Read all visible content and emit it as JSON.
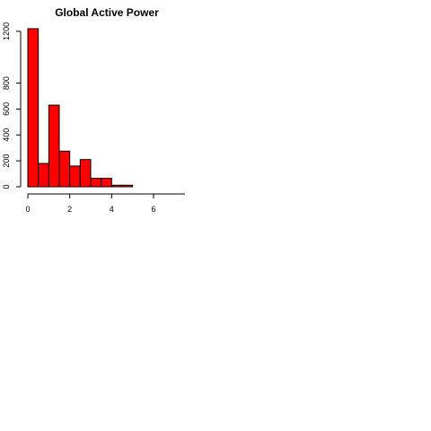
{
  "chart_data": {
    "type": "bar",
    "title": "Global Active Power",
    "xlabel": "",
    "ylabel": "",
    "bins": [
      {
        "x0": 0.0,
        "x1": 0.5,
        "count": 1220
      },
      {
        "x0": 0.5,
        "x1": 1.0,
        "count": 180
      },
      {
        "x0": 1.0,
        "x1": 1.5,
        "count": 630
      },
      {
        "x0": 1.5,
        "x1": 2.0,
        "count": 275
      },
      {
        "x0": 2.0,
        "x1": 2.5,
        "count": 160
      },
      {
        "x0": 2.5,
        "x1": 3.0,
        "count": 210
      },
      {
        "x0": 3.0,
        "x1": 3.5,
        "count": 65
      },
      {
        "x0": 3.5,
        "x1": 4.0,
        "count": 65
      },
      {
        "x0": 4.0,
        "x1": 4.5,
        "count": 12
      },
      {
        "x0": 4.5,
        "x1": 5.0,
        "count": 12
      }
    ],
    "xlim": [
      0,
      7.5
    ],
    "ylim": [
      0,
      1220
    ],
    "x_ticks": [
      0,
      2,
      4,
      6
    ],
    "y_ticks": [
      0,
      200,
      400,
      600,
      800,
      1200
    ],
    "bar_color": "#ff0000",
    "bar_border_color": "#000000",
    "grid": false,
    "legend": "none"
  }
}
